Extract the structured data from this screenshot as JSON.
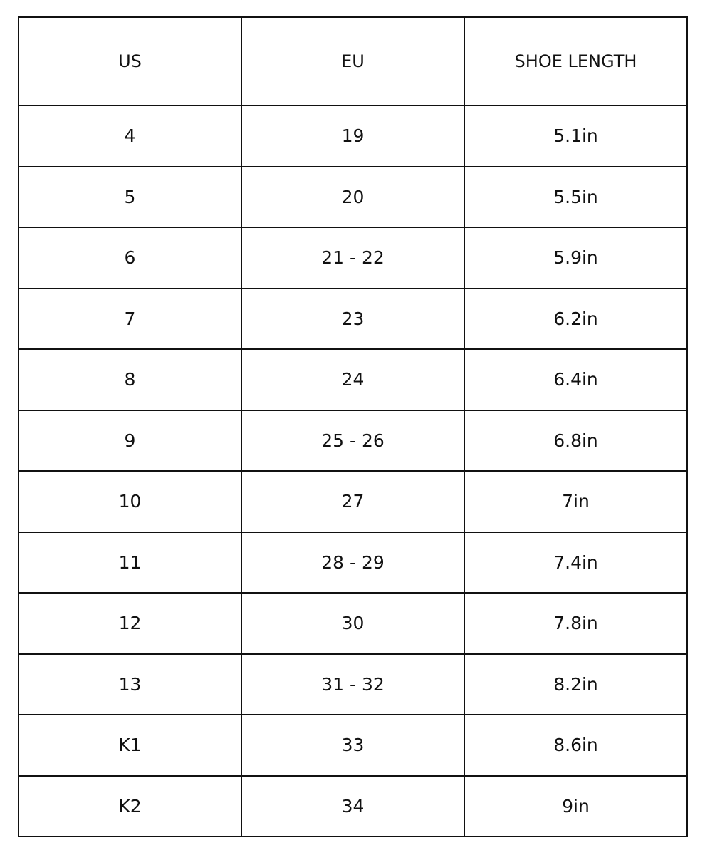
{
  "table": {
    "header": [
      "US",
      "EU",
      "SHOE LENGTH"
    ],
    "rows": [
      [
        "4",
        "19",
        "5.1in"
      ],
      [
        "5",
        "20",
        "5.5in"
      ],
      [
        "6",
        "21 - 22",
        "5.9in"
      ],
      [
        "7",
        "23",
        "6.2in"
      ],
      [
        "8",
        "24",
        "6.4in"
      ],
      [
        "9",
        "25 - 26",
        "6.8in"
      ],
      [
        "10",
        "27",
        "7in"
      ],
      [
        "11",
        "28 - 29",
        "7.4in"
      ],
      [
        "12",
        "30",
        "7.8in"
      ],
      [
        "13",
        "31 - 32",
        "8.2in"
      ],
      [
        "K1",
        "33",
        "8.6in"
      ],
      [
        "K2",
        "34",
        "9in"
      ]
    ]
  }
}
